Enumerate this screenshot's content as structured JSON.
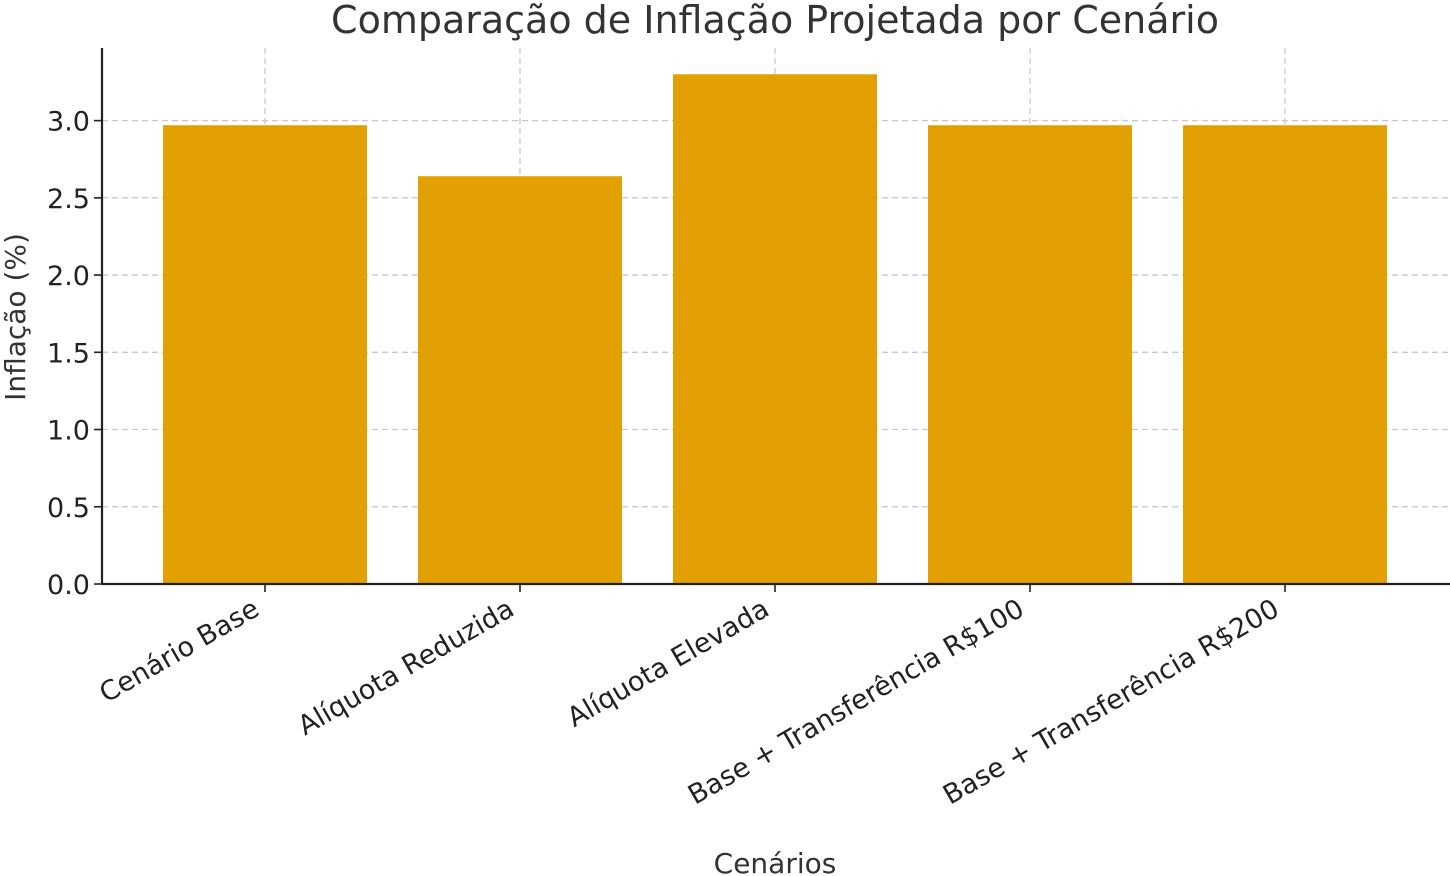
{
  "chart_data": {
    "type": "bar",
    "title": "Comparação de Inflação Projetada por Cenário",
    "xlabel": "Cenários",
    "ylabel": "Inflação (%)",
    "categories": [
      "Cenário Base",
      "Alíquota Reduzida",
      "Alíquota Elevada",
      "Base + Transferência R$100",
      "Base + Transferência R$200"
    ],
    "values": [
      2.97,
      2.64,
      3.3,
      2.97,
      2.97
    ],
    "ylim": [
      0,
      3.47
    ],
    "yticks": [
      "0.0",
      "0.5",
      "1.0",
      "1.5",
      "2.0",
      "2.5",
      "3.0"
    ],
    "grid": true,
    "bar_color": "#E3A002"
  }
}
